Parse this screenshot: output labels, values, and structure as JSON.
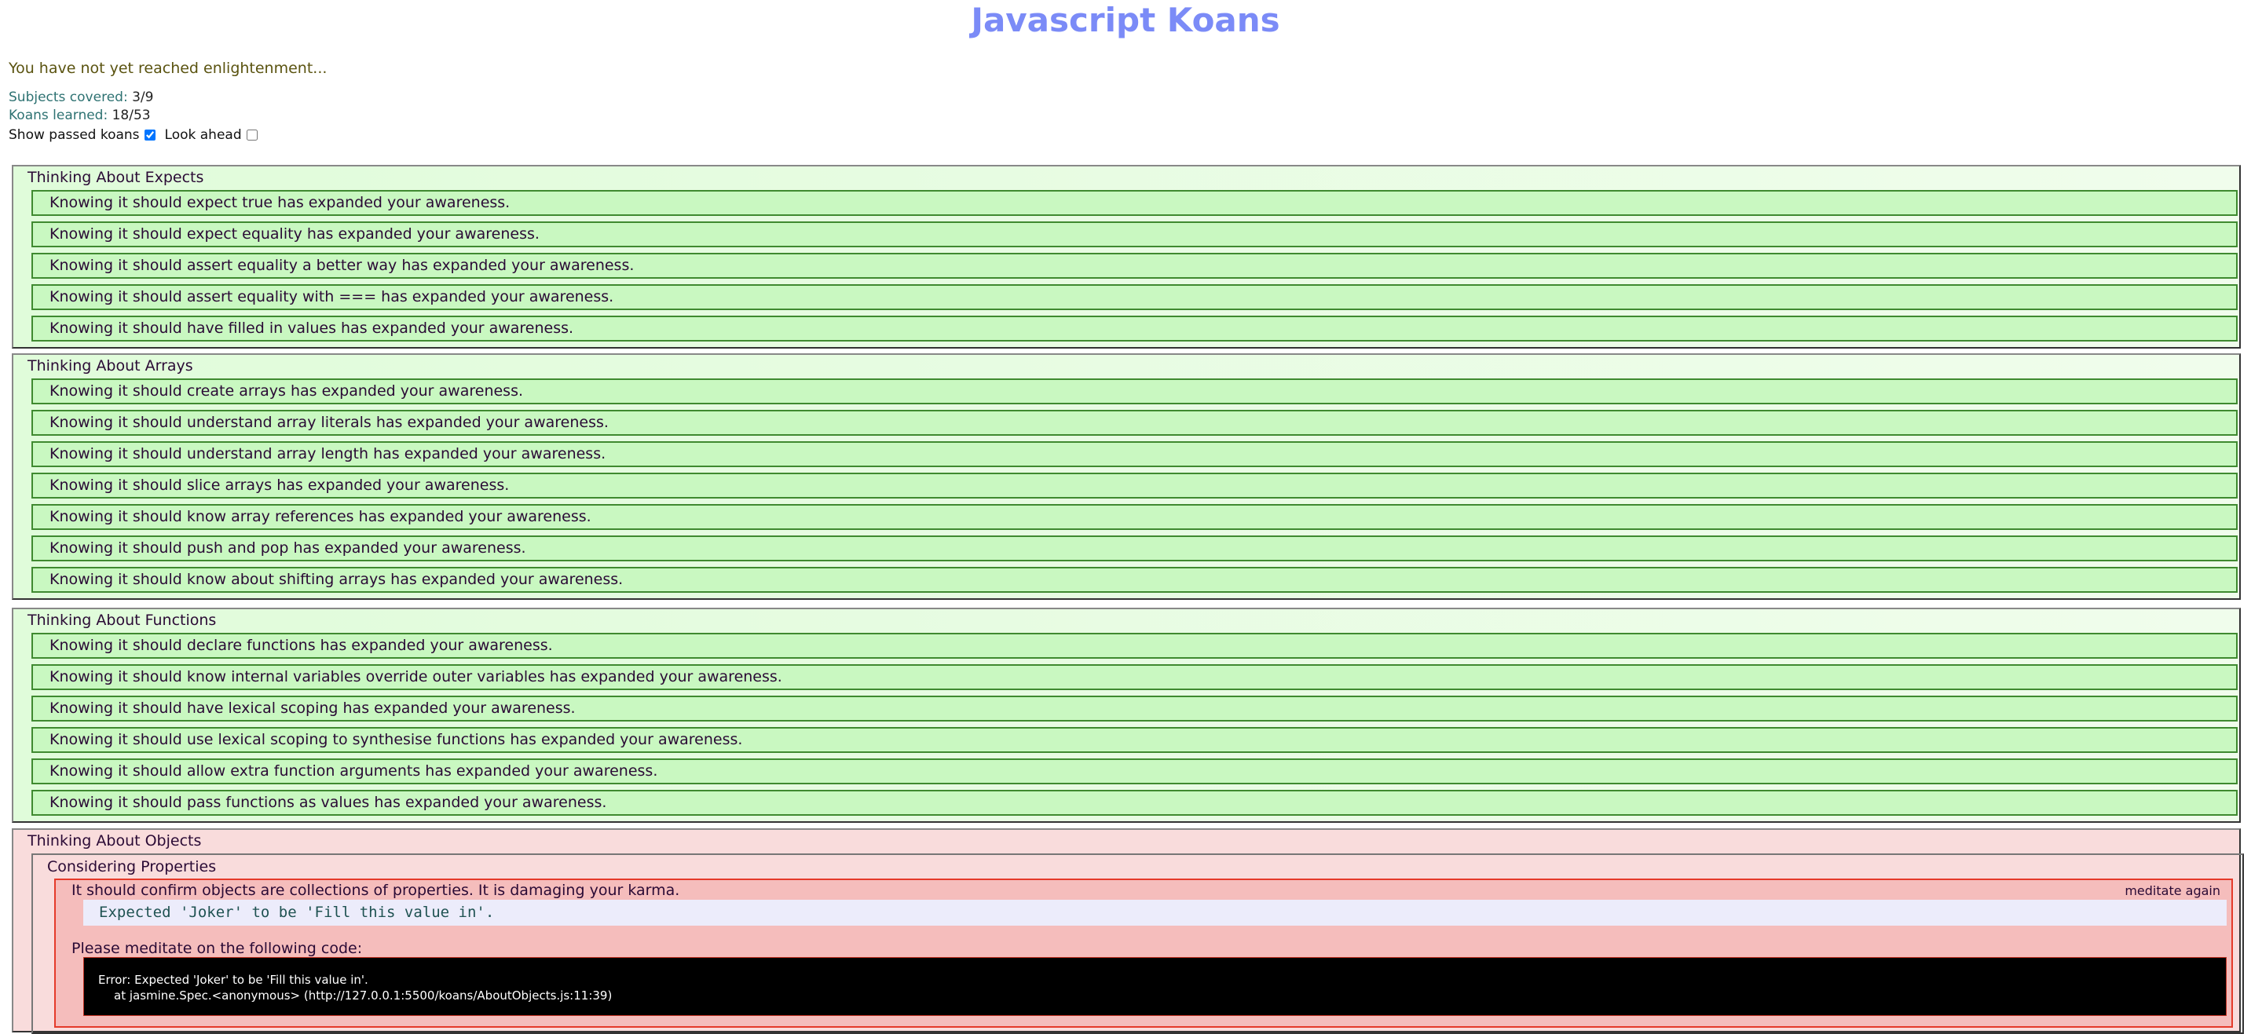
{
  "title": "Javascript Koans",
  "intro": "You have not yet reached enlightenment...",
  "stats": {
    "subjects_label": "Subjects covered:",
    "subjects_value": "3/9",
    "koans_label": "Koans learned:",
    "koans_value": "18/53"
  },
  "options": {
    "show_passed_label": "Show passed koans",
    "show_passed_checked": true,
    "look_ahead_label": "Look ahead",
    "look_ahead_checked": false
  },
  "sections": [
    {
      "title": "Thinking About Expects",
      "koans": [
        "Knowing it should expect true has expanded your awareness.",
        "Knowing it should expect equality has expanded your awareness.",
        "Knowing it should assert equality a better way has expanded your awareness.",
        "Knowing it should assert equality with === has expanded your awareness.",
        "Knowing it should have filled in values has expanded your awareness."
      ]
    },
    {
      "title": "Thinking About Arrays",
      "koans": [
        "Knowing it should create arrays has expanded your awareness.",
        "Knowing it should understand array literals has expanded your awareness.",
        "Knowing it should understand array length has expanded your awareness.",
        "Knowing it should slice arrays has expanded your awareness.",
        "Knowing it should know array references has expanded your awareness.",
        "Knowing it should push and pop has expanded your awareness.",
        "Knowing it should know about shifting arrays has expanded your awareness."
      ]
    },
    {
      "title": "Thinking About Functions",
      "koans": [
        "Knowing it should declare functions has expanded your awareness.",
        "Knowing it should know internal variables override outer variables has expanded your awareness.",
        "Knowing it should have lexical scoping has expanded your awareness.",
        "Knowing it should use lexical scoping to synthesise functions has expanded your awareness.",
        "Knowing it should allow extra function arguments has expanded your awareness.",
        "Knowing it should pass functions as values has expanded your awareness."
      ]
    }
  ],
  "failing_section": {
    "title": "Thinking About Objects",
    "subsection": "Considering Properties",
    "message": "It should confirm objects are collections of properties. It is damaging your karma.",
    "meditate_again": "meditate again",
    "expected": "Expected 'Joker' to be 'Fill this value in'.",
    "please": "Please meditate on the following code:",
    "error_line1": "Error: Expected 'Joker' to be 'Fill this value in'.",
    "error_line2": "at jasmine.Spec.<anonymous> (http://127.0.0.1:5500/koans/AboutObjects.js:11:39)"
  }
}
